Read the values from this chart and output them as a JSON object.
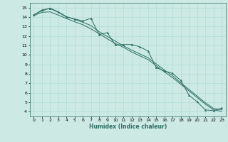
{
  "xlabel": "Humidex (Indice chaleur)",
  "xlim": [
    -0.5,
    23.5
  ],
  "ylim": [
    3.5,
    15.5
  ],
  "xticks": [
    0,
    1,
    2,
    3,
    4,
    5,
    6,
    7,
    8,
    9,
    10,
    11,
    12,
    13,
    14,
    15,
    16,
    17,
    18,
    19,
    20,
    21,
    22,
    23
  ],
  "yticks": [
    4,
    5,
    6,
    7,
    8,
    9,
    10,
    11,
    12,
    13,
    14,
    15
  ],
  "bg_color": "#cce9e4",
  "line_color": "#2d6e62",
  "grid_color": "#b0ddd6",
  "line1_y": [
    14.2,
    14.75,
    14.9,
    14.5,
    14.0,
    13.8,
    13.6,
    13.85,
    12.15,
    12.35,
    11.05,
    11.1,
    11.1,
    10.85,
    10.4,
    8.65,
    8.3,
    8.05,
    7.3,
    5.75,
    5.05,
    4.2,
    4.1,
    4.4
  ],
  "line2_y": [
    14.25,
    14.65,
    14.95,
    14.55,
    14.05,
    13.75,
    13.45,
    13.1,
    12.45,
    11.95,
    11.45,
    10.95,
    10.5,
    10.1,
    9.7,
    9.05,
    8.4,
    7.8,
    7.05,
    6.35,
    5.65,
    4.95,
    4.35,
    4.2
  ],
  "line3_y": [
    14.15,
    14.5,
    14.55,
    14.2,
    13.85,
    13.5,
    13.2,
    12.75,
    12.25,
    11.7,
    11.2,
    10.8,
    10.3,
    9.9,
    9.5,
    8.85,
    8.2,
    7.6,
    6.9,
    6.2,
    5.5,
    4.8,
    4.2,
    4.05
  ],
  "marker_size": 1.8,
  "line_width": 0.7,
  "tick_fontsize": 4.5,
  "xlabel_fontsize": 5.5
}
